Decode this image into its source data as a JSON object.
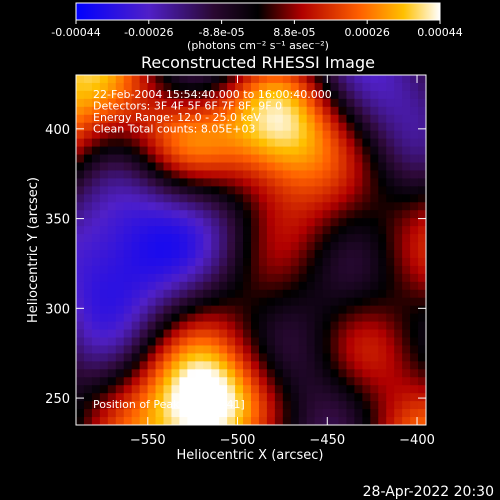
{
  "chart_data": {
    "type": "heatmap",
    "title": "Reconstructed RHESSI Image",
    "colorbar": {
      "ticks": [
        "-0.00044",
        "-0.00026",
        "-8.8e-05",
        "8.8e-05",
        "0.00026",
        "0.00044"
      ],
      "units_label": "(photons cm⁻² s⁻¹ asec⁻²)",
      "range": [
        -0.00044,
        0.00044
      ],
      "colormap": "blue-purple-black-red-orange-yellow-white"
    },
    "xlabel": "Heliocentric X (arcsec)",
    "ylabel": "Heliocentric Y (arcsec)",
    "xlim": [
      -590,
      -395
    ],
    "ylim": [
      235,
      430
    ],
    "x_ticks": [
      -550,
      -500,
      -450,
      -400
    ],
    "y_ticks": [
      250,
      300,
      350,
      400
    ],
    "annotations": [
      "22-Feb-2004 15:54:40.000 to 16:00:40.000",
      "Detectors: 3F 4F 5F 6F 7F 8F, 9F 0",
      "Energy Range: 12.0 - 25.0 keV",
      "Clean       Total counts: 8.05E+03"
    ],
    "peak_label": "Position of Peak: [-519,241]",
    "peak_position": [
      -519,
      241
    ]
  },
  "footer": {
    "timestamp": "28-Apr-2022 20:30"
  },
  "colors": {
    "background": "#000000",
    "foreground": "#ffffff"
  }
}
